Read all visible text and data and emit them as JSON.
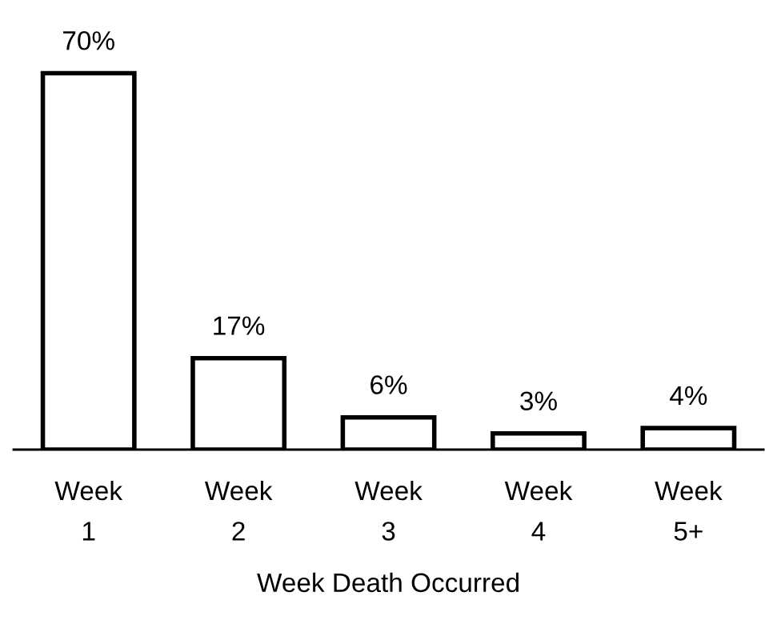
{
  "chart_data": {
    "type": "bar",
    "xlabel": "Week Death Occurred",
    "categories": [
      "Week\n1",
      "Week\n2",
      "Week\n3",
      "Week\n4",
      "Week\n5+"
    ],
    "values": [
      70,
      17,
      6,
      3,
      4
    ],
    "value_labels": [
      "70%",
      "17%",
      "6%",
      "3%",
      "4%"
    ],
    "color": "#ffffff",
    "grid": false,
    "legend": false
  }
}
